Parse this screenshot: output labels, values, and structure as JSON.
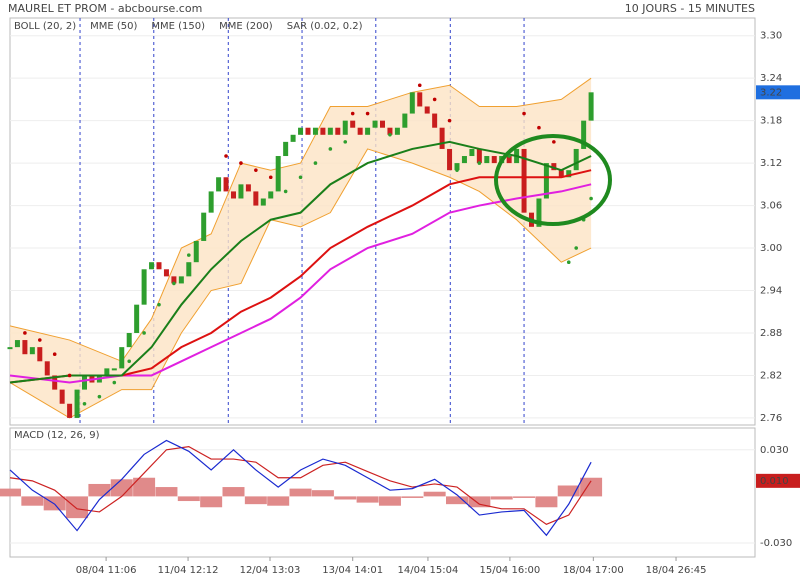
{
  "header": {
    "title": "MAUREL ET PROM - abcbourse.com",
    "period": "10 JOURS - 15 MINUTES"
  },
  "chart_data": [
    {
      "type": "candlestick",
      "xlim": [
        0,
        100
      ],
      "ylim": [
        2.75,
        3.325
      ],
      "yticks": [
        2.76,
        2.82,
        2.88,
        2.94,
        {
          "value": 3,
          "label": "3.00"
        },
        3.06,
        3.12,
        3.18,
        3.24,
        {
          "value": 3.3,
          "label": "3.30"
        }
      ],
      "xgrid": [
        9.4,
        19.3,
        29.3,
        39.2,
        49.1,
        59.1,
        69.0
      ],
      "x": [
        0,
        1,
        2,
        3,
        4,
        5,
        6,
        7,
        8,
        9,
        10,
        11,
        12,
        13,
        14,
        15,
        16,
        17,
        18,
        19,
        20,
        21,
        22,
        23,
        24,
        25,
        26,
        27,
        28,
        29,
        30,
        31,
        32,
        33,
        34,
        35,
        36,
        37,
        38,
        39,
        40,
        41,
        42,
        43,
        44,
        45,
        46,
        47,
        48,
        49,
        50,
        51,
        52,
        53,
        54,
        55,
        56,
        57,
        58,
        59,
        60,
        61,
        62,
        63,
        64,
        65,
        66,
        67,
        68,
        69,
        70,
        71,
        72,
        73,
        74,
        75,
        76,
        77,
        78
      ],
      "values": [
        2.86,
        2.87,
        2.85,
        2.86,
        2.84,
        2.82,
        2.8,
        2.78,
        2.76,
        2.8,
        2.82,
        2.81,
        2.82,
        2.83,
        2.83,
        2.86,
        2.88,
        2.92,
        2.97,
        2.98,
        2.97,
        2.96,
        2.95,
        2.96,
        2.98,
        3.01,
        3.05,
        3.08,
        3.1,
        3.08,
        3.07,
        3.09,
        3.08,
        3.06,
        3.07,
        3.08,
        3.13,
        3.15,
        3.16,
        3.17,
        3.16,
        3.17,
        3.16,
        3.17,
        3.16,
        3.18,
        3.17,
        3.16,
        3.17,
        3.18,
        3.17,
        3.16,
        3.17,
        3.19,
        3.22,
        3.2,
        3.19,
        3.17,
        3.14,
        3.11,
        3.12,
        3.13,
        3.14,
        3.12,
        3.13,
        3.12,
        3.13,
        3.12,
        3.14,
        3.05,
        3.03,
        3.07,
        3.12,
        3.11,
        3.1,
        3.11,
        3.14,
        3.18,
        3.22
      ],
      "up_color": "#2e9e2e",
      "down_color": "#c81e1e",
      "last_color": "#1f6fe0",
      "series": [
        {
          "name": "BOLL (20, 2)",
          "type": "band",
          "color": "#f0a030",
          "fill": "#fde3c4",
          "x": [
            0,
            8,
            15,
            19,
            23,
            27,
            31,
            35,
            39,
            43,
            48,
            54,
            59,
            63,
            68,
            74,
            78
          ],
          "upper": [
            2.89,
            2.87,
            2.84,
            2.9,
            3.0,
            3.02,
            3.12,
            3.11,
            3.12,
            3.2,
            3.2,
            3.22,
            3.23,
            3.2,
            3.2,
            3.21,
            3.24
          ],
          "lower": [
            2.81,
            2.76,
            2.8,
            2.8,
            2.88,
            2.94,
            2.95,
            3.04,
            3.03,
            3.05,
            3.14,
            3.12,
            3.1,
            3.08,
            3.04,
            2.98,
            3.0
          ]
        },
        {
          "name": "MME (200)",
          "type": "line",
          "color": "#e020e0",
          "x": [
            0,
            8,
            15,
            19,
            23,
            27,
            31,
            35,
            39,
            43,
            48,
            54,
            59,
            63,
            68,
            74,
            78
          ],
          "values": [
            2.82,
            2.81,
            2.82,
            2.82,
            2.84,
            2.86,
            2.88,
            2.9,
            2.93,
            2.97,
            3.0,
            3.02,
            3.05,
            3.06,
            3.07,
            3.08,
            3.09
          ]
        },
        {
          "name": "MME (150)",
          "type": "line",
          "color": "#dd1111",
          "x": [
            0,
            8,
            15,
            19,
            23,
            27,
            31,
            35,
            39,
            43,
            48,
            54,
            59,
            63,
            68,
            74,
            78
          ],
          "values": [
            2.81,
            2.82,
            2.82,
            2.83,
            2.86,
            2.88,
            2.91,
            2.93,
            2.96,
            3.0,
            3.03,
            3.06,
            3.09,
            3.1,
            3.1,
            3.1,
            3.11
          ]
        },
        {
          "name": "MME (50)",
          "type": "line",
          "color": "#1a7f1a",
          "x": [
            0,
            8,
            15,
            19,
            23,
            27,
            31,
            35,
            39,
            43,
            48,
            54,
            59,
            63,
            68,
            74,
            78
          ],
          "values": [
            2.81,
            2.82,
            2.82,
            2.86,
            2.92,
            2.97,
            3.01,
            3.04,
            3.05,
            3.09,
            3.12,
            3.14,
            3.15,
            3.14,
            3.13,
            3.11,
            3.13
          ]
        },
        {
          "name": "SAR (0.02, 0.2)",
          "type": "scatter",
          "color": "#b01010",
          "x": [
            2,
            4,
            6,
            8,
            10,
            12,
            14,
            16,
            18,
            20,
            22,
            24,
            26,
            29,
            31,
            33,
            35,
            37,
            39,
            41,
            43,
            45,
            46,
            48,
            51,
            55,
            57,
            59,
            60,
            63,
            67,
            69,
            71,
            73,
            75,
            76,
            77,
            78
          ],
          "values": [
            2.88,
            2.87,
            2.85,
            2.82,
            2.78,
            2.79,
            2.81,
            2.84,
            2.88,
            2.92,
            2.95,
            2.99,
            3.03,
            3.13,
            3.12,
            3.11,
            3.1,
            3.08,
            3.1,
            3.12,
            3.14,
            3.15,
            3.19,
            3.19,
            3.16,
            3.23,
            3.21,
            3.18,
            3.11,
            3.12,
            3.13,
            3.19,
            3.17,
            3.15,
            2.98,
            3.0,
            3.04,
            3.07
          ],
          "colors": [
            "#c00000",
            "#c00000",
            "#c00000",
            "#c00000",
            "#2e9e2e",
            "#2e9e2e",
            "#2e9e2e",
            "#2e9e2e",
            "#2e9e2e",
            "#2e9e2e",
            "#2e9e2e",
            "#2e9e2e",
            "#2e9e2e",
            "#c00000",
            "#c00000",
            "#c00000",
            "#c00000",
            "#2e9e2e",
            "#2e9e2e",
            "#2e9e2e",
            "#2e9e2e",
            "#2e9e2e",
            "#c00000",
            "#c00000",
            "#2e9e2e",
            "#c00000",
            "#c00000",
            "#c00000",
            "#2e9e2e",
            "#2e9e2e",
            "#2e9e2e",
            "#c00000",
            "#c00000",
            "#c00000",
            "#2e9e2e",
            "#2e9e2e",
            "#2e9e2e",
            "#2e9e2e"
          ]
        }
      ]
    },
    {
      "type": "macd",
      "title": "MACD (12, 26, 9)",
      "xlim": [
        0,
        100
      ],
      "ylim": [
        -0.039,
        0.044
      ],
      "yticks": [
        {
          "value": 0.03,
          "label": "0.030"
        },
        {
          "value": -0.03,
          "label": "-0.030"
        }
      ],
      "xticks": [
        {
          "value": 12.9,
          "label": "08/04 11:06"
        },
        {
          "value": 23.9,
          "label": "11/04 12:12"
        },
        {
          "value": 34.9,
          "label": "12/04 13:03"
        },
        {
          "value": 46.0,
          "label": "13/04 14:01"
        },
        {
          "value": 56.1,
          "label": "14/04 15:04"
        },
        {
          "value": 67.1,
          "label": "15/04 16:00"
        },
        {
          "value": 78.3,
          "label": "18/04 17:00"
        },
        {
          "value": 89.4,
          "label": "18/04 26:45"
        }
      ],
      "marker": {
        "value": 0.01,
        "label": "0.010",
        "color": "#c81e1e"
      },
      "x": [
        0,
        3,
        6,
        9,
        12,
        15,
        18,
        21,
        24,
        27,
        30,
        33,
        36,
        39,
        42,
        45,
        48,
        51,
        54,
        57,
        60,
        63,
        66,
        69,
        72,
        75,
        78
      ],
      "series": [
        {
          "type": "bar",
          "color": "#e08a8a",
          "values": [
            0.005,
            -0.006,
            -0.009,
            -0.014,
            0.008,
            0.011,
            0.012,
            0.006,
            -0.003,
            -0.007,
            0.006,
            -0.005,
            -0.006,
            0.005,
            0.004,
            -0.002,
            -0.004,
            -0.006,
            -0.001,
            0.003,
            -0.005,
            -0.007,
            -0.002,
            -0.001,
            -0.007,
            0.007,
            0.012
          ]
        },
        {
          "type": "line",
          "color": "#cc2222",
          "values": [
            0.012,
            0.01,
            0.004,
            -0.008,
            -0.01,
            0.0,
            0.015,
            0.03,
            0.032,
            0.024,
            0.024,
            0.022,
            0.012,
            0.012,
            0.02,
            0.022,
            0.016,
            0.01,
            0.006,
            0.008,
            0.006,
            -0.005,
            -0.008,
            -0.008,
            -0.018,
            -0.012,
            0.01
          ]
        },
        {
          "type": "line",
          "color": "#1a2ad0",
          "values": [
            0.017,
            0.004,
            -0.005,
            -0.022,
            -0.002,
            0.011,
            0.027,
            0.036,
            0.029,
            0.017,
            0.03,
            0.017,
            0.006,
            0.017,
            0.024,
            0.02,
            0.012,
            0.004,
            0.005,
            0.011,
            0.001,
            -0.012,
            -0.01,
            -0.009,
            -0.025,
            -0.005,
            0.022
          ]
        }
      ]
    }
  ]
}
